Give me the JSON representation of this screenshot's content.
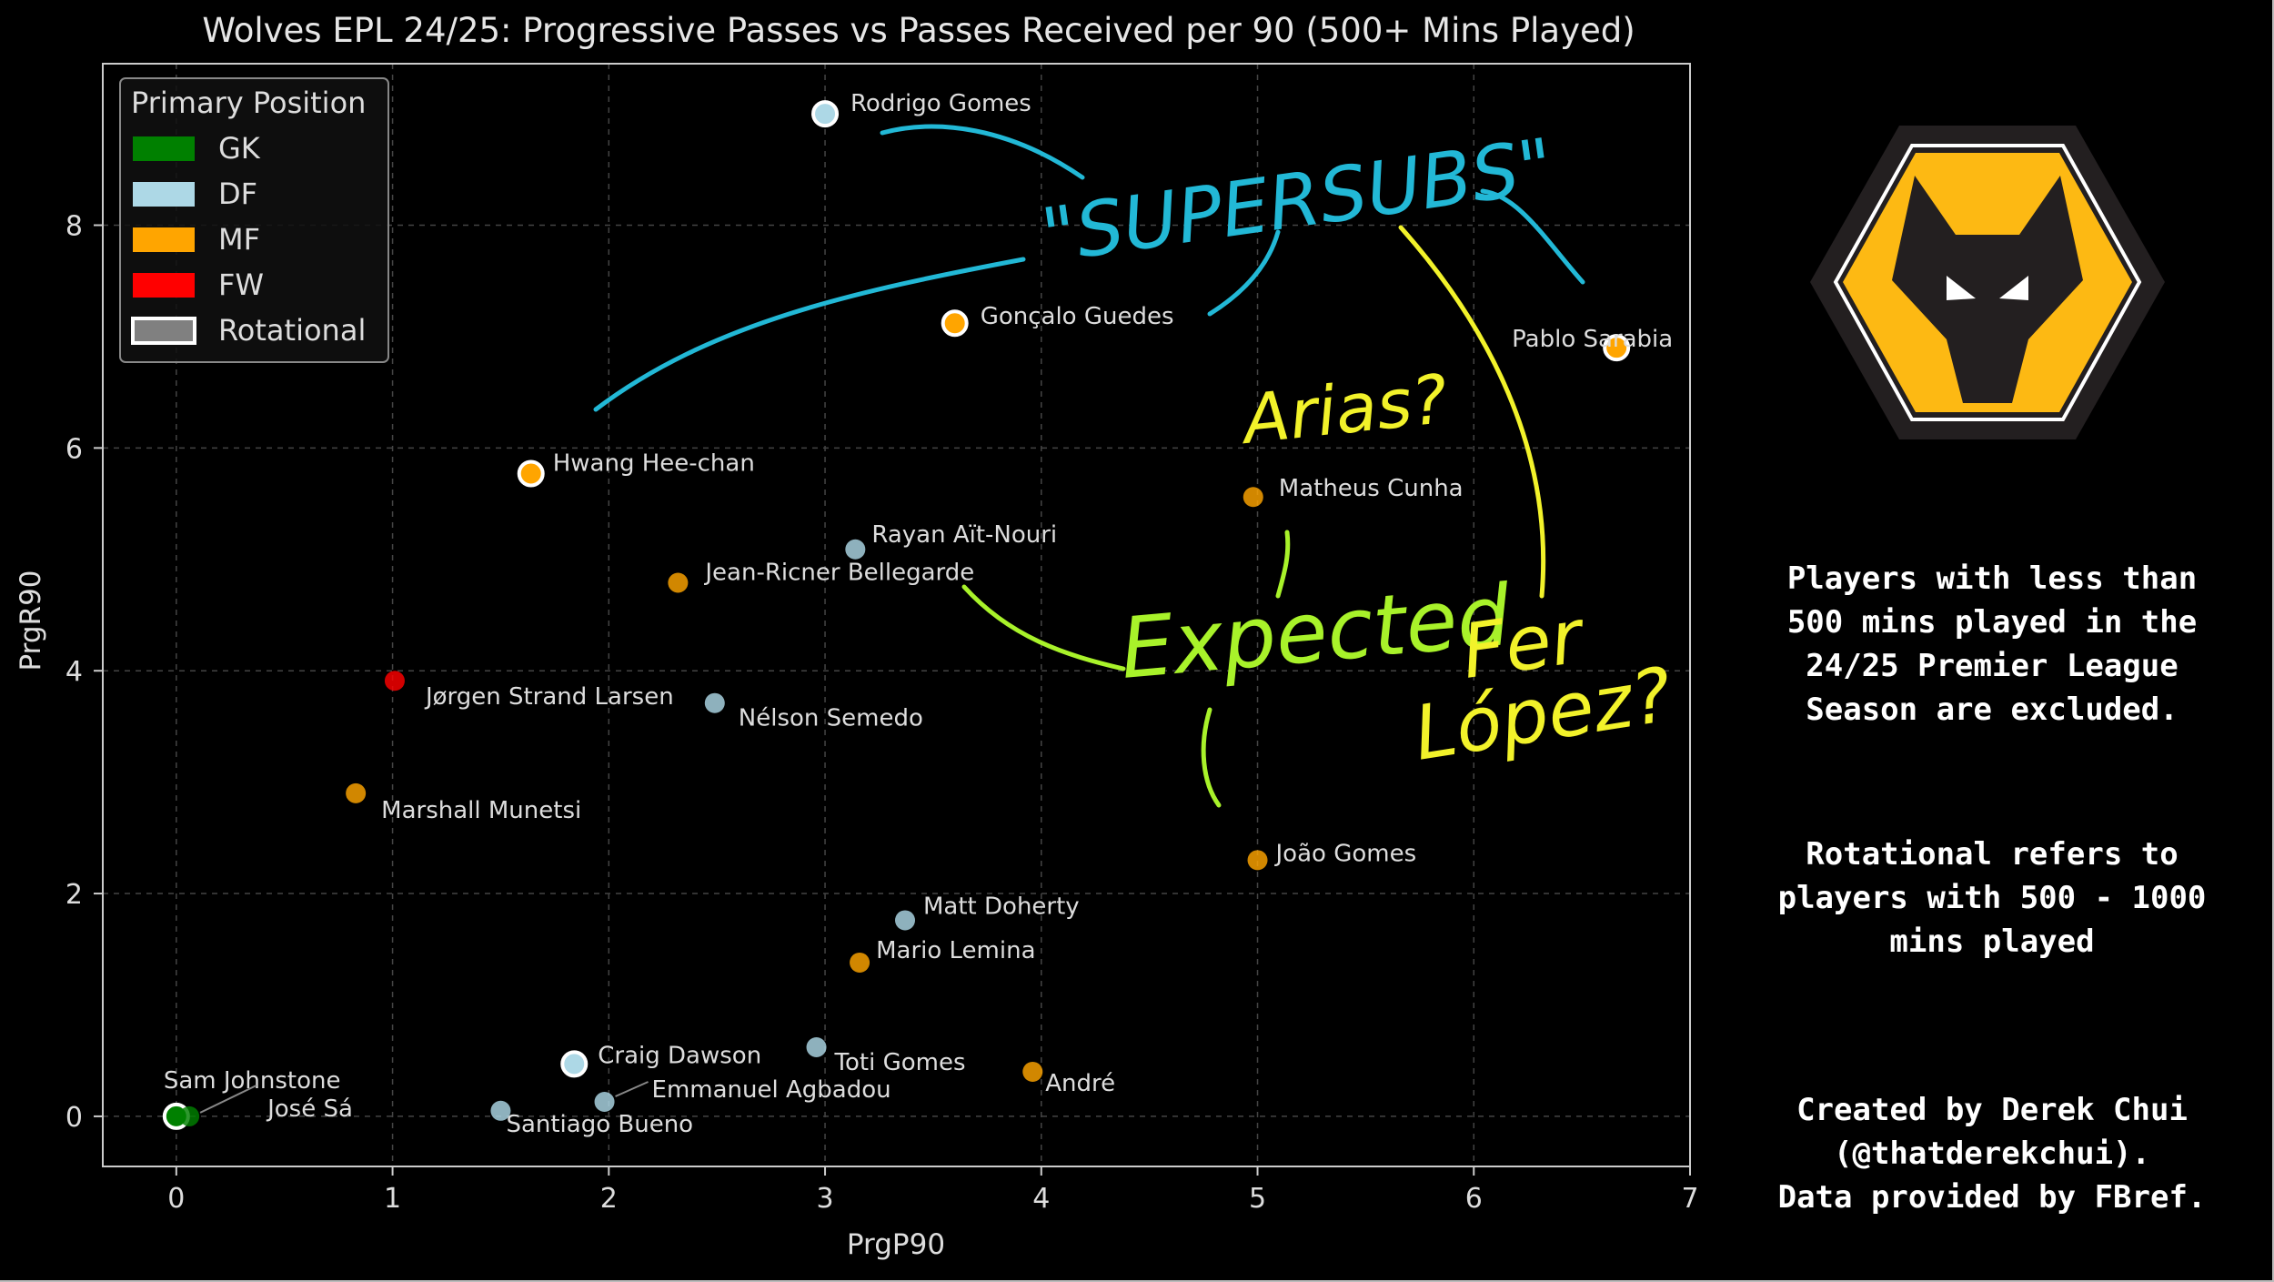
{
  "chart_data": {
    "type": "scatter",
    "title": "Wolves EPL 24/25: Progressive Passes vs Passes Received per 90 (500+ Mins Played)",
    "xlabel": "PrgP90",
    "ylabel": "PrgR90",
    "xlim": [
      -0.34,
      7.0
    ],
    "ylim": [
      -0.45,
      9.45
    ],
    "xticks": [
      "0",
      "1",
      "2",
      "3",
      "4",
      "5",
      "6",
      "7"
    ],
    "yticks": [
      "0",
      "2",
      "4",
      "6",
      "8"
    ],
    "grid": true,
    "legend": {
      "title": "Primary Position",
      "placement": "top-left",
      "entries": [
        {
          "label": "GK",
          "color": "#008000"
        },
        {
          "label": "DF",
          "color": "#add8e6"
        },
        {
          "label": "MF",
          "color": "#ffa500"
        },
        {
          "label": "FW",
          "color": "#ff0000"
        },
        {
          "label": "Rotational",
          "color": "#808080"
        }
      ]
    },
    "points": [
      {
        "name": "Rodrigo Gomes",
        "x": 3.0,
        "y": 9.0,
        "pos": "DF",
        "rotational": true
      },
      {
        "name": "Gonçalo Guedes",
        "x": 3.6,
        "y": 7.12,
        "pos": "MF",
        "rotational": true
      },
      {
        "name": "Pablo Sarabia",
        "x": 6.66,
        "y": 6.9,
        "pos": "MF",
        "rotational": true
      },
      {
        "name": "Hwang Hee-chan",
        "x": 1.64,
        "y": 5.77,
        "pos": "MF",
        "rotational": true
      },
      {
        "name": "Matheus Cunha",
        "x": 4.98,
        "y": 5.56,
        "pos": "MF",
        "rotational": false
      },
      {
        "name": "Rayan Aït-Nouri",
        "x": 3.14,
        "y": 5.09,
        "pos": "DF",
        "rotational": false
      },
      {
        "name": "Jean-Ricner Bellegarde",
        "x": 2.32,
        "y": 4.79,
        "pos": "MF",
        "rotational": false
      },
      {
        "name": "Jørgen Strand Larsen",
        "x": 1.01,
        "y": 3.91,
        "pos": "FW",
        "rotational": false
      },
      {
        "name": "Nélson Semedo",
        "x": 2.49,
        "y": 3.71,
        "pos": "DF",
        "rotational": false
      },
      {
        "name": "Marshall Munetsi",
        "x": 0.83,
        "y": 2.9,
        "pos": "MF",
        "rotational": false
      },
      {
        "name": "João Gomes",
        "x": 5.0,
        "y": 2.3,
        "pos": "MF",
        "rotational": false
      },
      {
        "name": "Matt Doherty",
        "x": 3.37,
        "y": 1.76,
        "pos": "DF",
        "rotational": false
      },
      {
        "name": "Mario Lemina",
        "x": 3.16,
        "y": 1.38,
        "pos": "MF",
        "rotational": false
      },
      {
        "name": "Craig Dawson",
        "x": 1.84,
        "y": 0.47,
        "pos": "DF",
        "rotational": true
      },
      {
        "name": "Toti Gomes",
        "x": 2.96,
        "y": 0.62,
        "pos": "DF",
        "rotational": false
      },
      {
        "name": "André",
        "x": 3.96,
        "y": 0.4,
        "pos": "MF",
        "rotational": false
      },
      {
        "name": "Emmanuel Agbadou",
        "x": 1.98,
        "y": 0.13,
        "pos": "DF",
        "rotational": false
      },
      {
        "name": "Santiago Bueno",
        "x": 1.5,
        "y": 0.05,
        "pos": "DF",
        "rotational": false
      },
      {
        "name": "Sam Johnstone",
        "x": 0.0,
        "y": 0.0,
        "pos": "GK",
        "rotational": true
      },
      {
        "name": "José Sá",
        "x": 0.06,
        "y": 0.0,
        "pos": "GK",
        "rotational": false
      }
    ],
    "annotations": [
      {
        "text": "\"SUPERSUBS\"",
        "color": "#22b8d6"
      },
      {
        "text": "Arias?",
        "color": "#f2f22a"
      },
      {
        "text": "Expected",
        "color": "#a8f22a"
      },
      {
        "text": "Fer",
        "color": "#f2f22a"
      },
      {
        "text": "López?",
        "color": "#f2f22a"
      }
    ]
  },
  "notes": {
    "exclusion": "Players with less than\n500 mins played in the\n24/25 Premier League\nSeason are excluded.",
    "rotational": "Rotational refers to\nplayers with 500 - 1000\nmins played",
    "credit": "Created by Derek Chui\n(@thatderekchui).\nData provided by FBref."
  },
  "logo_colors": {
    "outer": "#231f20",
    "gold": "#fdb913",
    "wolf": "#231f20",
    "eyes": "#ffffff"
  }
}
